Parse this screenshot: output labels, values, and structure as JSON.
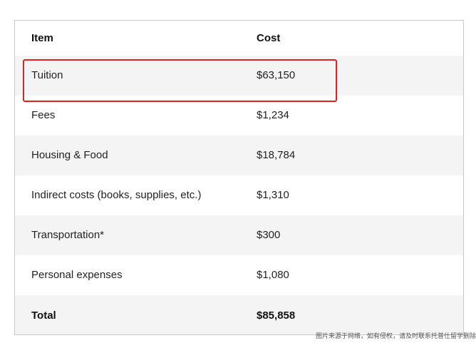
{
  "table": {
    "headers": {
      "item": "Item",
      "cost": "Cost"
    },
    "rows": [
      {
        "item": "Tuition",
        "cost": "$63,150"
      },
      {
        "item": "Fees",
        "cost": "$1,234"
      },
      {
        "item": "Housing & Food",
        "cost": "$18,784"
      },
      {
        "item": "Indirect costs (books, supplies, etc.)",
        "cost": "$1,310"
      },
      {
        "item": "Transportation*",
        "cost": "$300"
      },
      {
        "item": "Personal expenses",
        "cost": "$1,080"
      }
    ],
    "total": {
      "item": "Total",
      "cost": "$85,858"
    }
  },
  "highlight": {
    "color": "#e02020"
  },
  "watermark": "图片来源于网络，如有侵权，请及时联系托普仕留学删除"
}
